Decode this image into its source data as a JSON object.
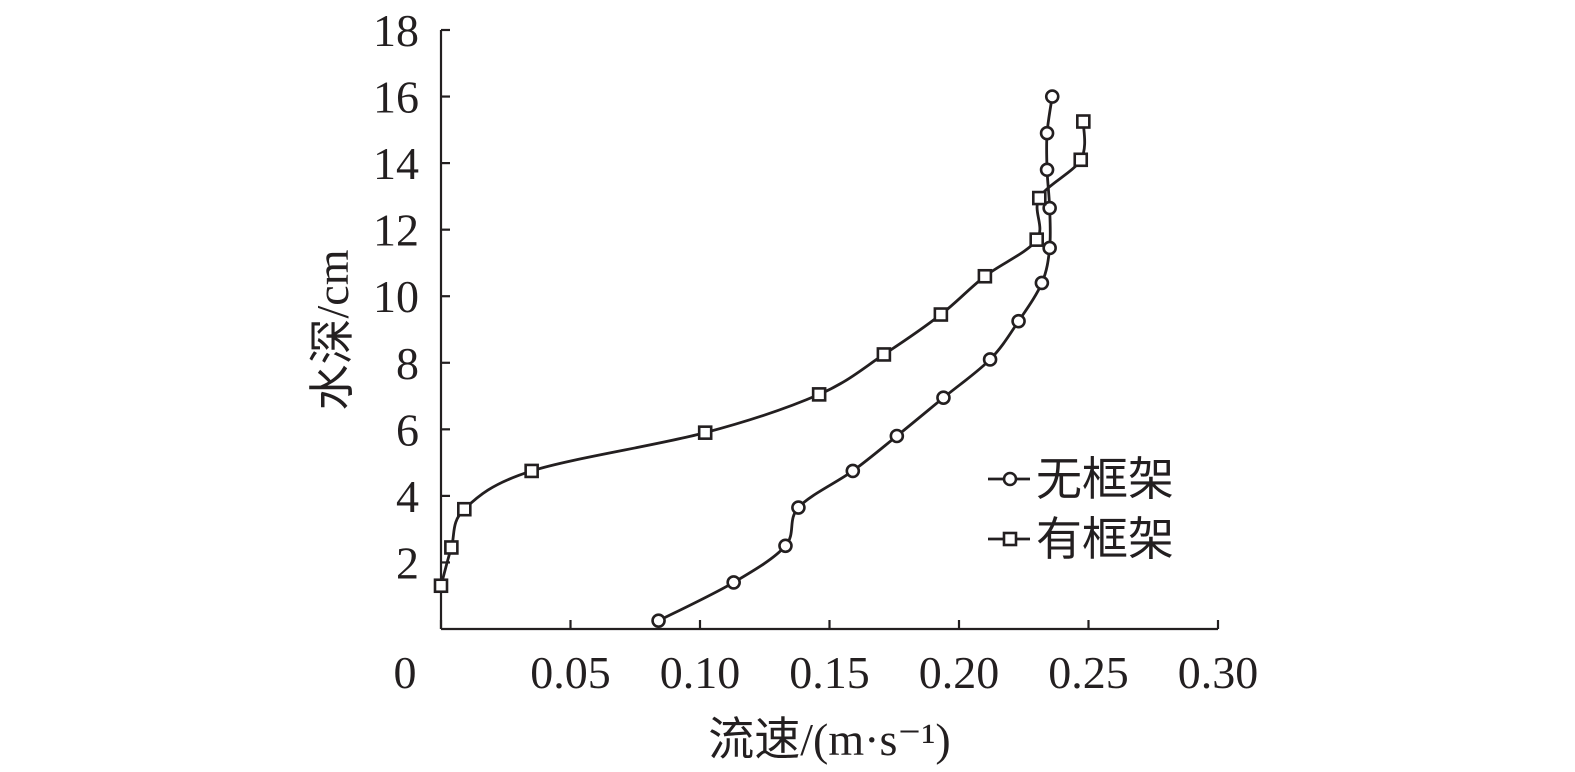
{
  "chart_data": {
    "type": "line",
    "xlabel": "流速/(m·s⁻¹)",
    "ylabel": "水深/cm",
    "xlim": [
      0,
      0.3
    ],
    "ylim": [
      0,
      18
    ],
    "x_ticks": [
      0,
      0.05,
      0.1,
      0.15,
      0.2,
      0.25,
      0.3
    ],
    "x_tick_labels": [
      "0",
      "0.05",
      "0.10",
      "0.15",
      "0.20",
      "0.25",
      "0.30"
    ],
    "y_ticks": [
      2,
      4,
      6,
      8,
      10,
      12,
      14,
      16,
      18
    ],
    "y_tick_labels": [
      "2",
      "4",
      "6",
      "8",
      "10",
      "12",
      "14",
      "16",
      "18"
    ],
    "grid": false,
    "legend_position": "right-middle",
    "series": [
      {
        "name": "无框架",
        "marker": "circle",
        "color": "#231f20",
        "points": [
          {
            "x": 0.084,
            "y": 0.25
          },
          {
            "x": 0.113,
            "y": 1.4
          },
          {
            "x": 0.133,
            "y": 2.5
          },
          {
            "x": 0.138,
            "y": 3.65
          },
          {
            "x": 0.159,
            "y": 4.75
          },
          {
            "x": 0.176,
            "y": 5.8
          },
          {
            "x": 0.194,
            "y": 6.95
          },
          {
            "x": 0.212,
            "y": 8.1
          },
          {
            "x": 0.223,
            "y": 9.25
          },
          {
            "x": 0.232,
            "y": 10.4
          },
          {
            "x": 0.235,
            "y": 11.45
          },
          {
            "x": 0.235,
            "y": 12.65
          },
          {
            "x": 0.234,
            "y": 13.8
          },
          {
            "x": 0.234,
            "y": 14.9
          },
          {
            "x": 0.236,
            "y": 16.0
          }
        ]
      },
      {
        "name": "有框架",
        "marker": "square",
        "color": "#231f20",
        "points": [
          {
            "x": 0.0,
            "y": 1.3
          },
          {
            "x": 0.004,
            "y": 2.45
          },
          {
            "x": 0.009,
            "y": 3.6
          },
          {
            "x": 0.035,
            "y": 4.75
          },
          {
            "x": 0.102,
            "y": 5.9
          },
          {
            "x": 0.146,
            "y": 7.05
          },
          {
            "x": 0.171,
            "y": 8.25
          },
          {
            "x": 0.193,
            "y": 9.45
          },
          {
            "x": 0.21,
            "y": 10.6
          },
          {
            "x": 0.23,
            "y": 11.7
          },
          {
            "x": 0.231,
            "y": 12.95
          },
          {
            "x": 0.247,
            "y": 14.1
          },
          {
            "x": 0.248,
            "y": 15.25
          }
        ]
      }
    ]
  }
}
